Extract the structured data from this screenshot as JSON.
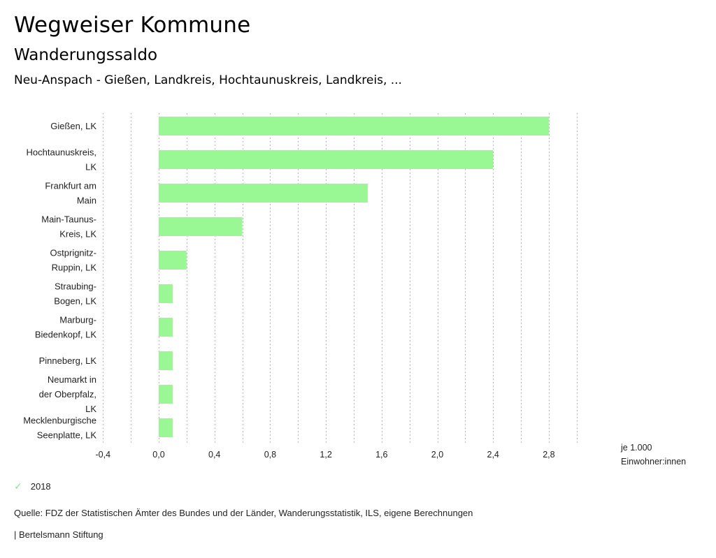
{
  "header": {
    "title": "Wegweiser Kommune",
    "subtitle": "Wanderungssaldo",
    "selection": "Neu-Anspach - Gießen, Landkreis, Hochtaunuskreis, Landkreis, ..."
  },
  "chart_data": {
    "type": "bar",
    "orientation": "horizontal",
    "title": "Wanderungssaldo",
    "categories": [
      [
        "Gießen, LK"
      ],
      [
        "Hochtaunuskreis,",
        "LK"
      ],
      [
        "Frankfurt am",
        "Main"
      ],
      [
        "Main-Taunus-",
        "Kreis, LK"
      ],
      [
        "Ostprignitz-",
        "Ruppin, LK"
      ],
      [
        "Straubing-",
        "Bogen, LK"
      ],
      [
        "Marburg-",
        "Biedenkopf, LK"
      ],
      [
        "Pinneberg, LK"
      ],
      [
        "Neumarkt in",
        "der Oberpfalz,",
        "LK"
      ],
      [
        "Mecklenburgische",
        "Seenplatte, LK"
      ]
    ],
    "series": [
      {
        "name": "2018",
        "color": "#99f893",
        "values": [
          2.8,
          2.4,
          1.5,
          0.6,
          0.2,
          0.1,
          0.1,
          0.1,
          0.1,
          0.1
        ]
      }
    ],
    "xlim": [
      -0.4,
      3.0
    ],
    "xticks": [
      "-0,4",
      "0,0",
      "0,4",
      "0,8",
      "1,2",
      "1,6",
      "2,0",
      "2,4",
      "2,8"
    ],
    "xtick_values": [
      -0.4,
      0.0,
      0.4,
      0.8,
      1.2,
      1.6,
      2.0,
      2.4,
      2.8
    ],
    "grid_step": 0.2,
    "grid": true,
    "xlabel": "je 1.000 Einwohner:innen",
    "legend_position": "bottom-left"
  },
  "unit_label": [
    "je 1.000",
    "Einwohner:innen"
  ],
  "legend": {
    "label": "2018",
    "icon": "check-icon",
    "color": "#99f893"
  },
  "footer": {
    "source": "Quelle: FDZ der Statistischen Ämter des Bundes und der Länder, Wanderungsstatistik, ILS, eigene Berechnungen",
    "brand": "| Bertelsmann Stiftung"
  }
}
